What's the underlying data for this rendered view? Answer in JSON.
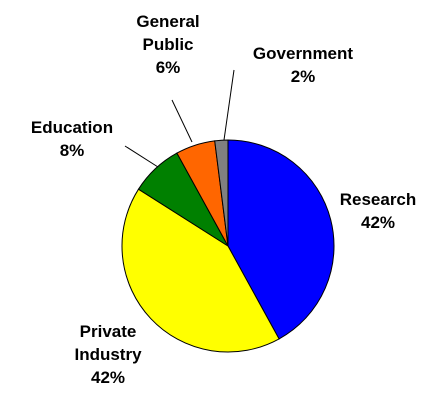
{
  "chart_data": {
    "type": "pie",
    "title": "",
    "start_angle_deg": 0,
    "direction": "clockwise",
    "slice_border": "#000000",
    "slices": [
      {
        "name": "Research",
        "value": 42,
        "label_lines": [
          "Research",
          "42%"
        ],
        "color": "#0000FF"
      },
      {
        "name": "Private Industry",
        "value": 42,
        "label_lines": [
          "Private",
          "Industry",
          "42%"
        ],
        "color": "#FFFF00"
      },
      {
        "name": "Education",
        "value": 8,
        "label_lines": [
          "Education",
          "8%"
        ],
        "color": "#008000"
      },
      {
        "name": "General Public",
        "value": 6,
        "label_lines": [
          "General",
          "Public",
          "6%"
        ],
        "color": "#FF6600"
      },
      {
        "name": "Government",
        "value": 2,
        "label_lines": [
          "Government",
          "2%"
        ],
        "color": "#808080"
      }
    ]
  }
}
